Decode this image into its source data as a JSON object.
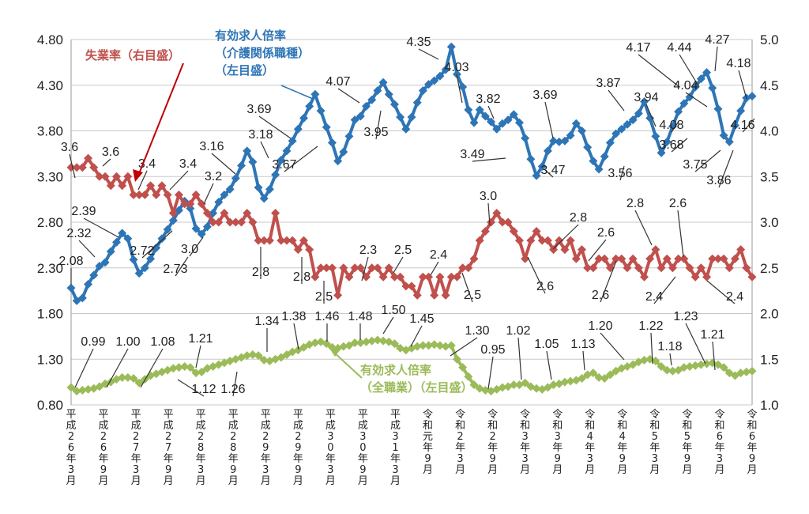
{
  "chart_data": {
    "type": "line",
    "x_labels": [
      "平成26年3月",
      "平成26年9月",
      "平成27年3月",
      "平成27年9月",
      "平成28年3月",
      "平成28年9月",
      "平成29年3月",
      "平成29年9月",
      "平成30年3月",
      "平成30年9月",
      "平成31年3月",
      "令和元年9月",
      "令和2年3月",
      "令和2年9月",
      "令和3年3月",
      "令和3年9月",
      "令和4年3月",
      "令和4年9月",
      "令和5年3月",
      "令和5年9月",
      "令和6年3月",
      "令和6年9月"
    ],
    "left_axis": {
      "ticks": [
        "0.80",
        "1.30",
        "1.80",
        "2.30",
        "2.80",
        "3.30",
        "3.80",
        "4.30",
        "4.80"
      ],
      "range": [
        0.8,
        4.8
      ]
    },
    "right_axis": {
      "ticks": [
        "1.0",
        "1.5",
        "2.0",
        "2.5",
        "3.0",
        "3.5",
        "4.0",
        "4.5",
        "5.0"
      ],
      "range": [
        1.0,
        5.0
      ]
    },
    "series": [
      {
        "name": "有効求人倍率（介護関係職種）（左目盛）",
        "label_lines": [
          "有効求人倍率",
          "（介護関係職種）",
          "（左目盛）"
        ],
        "axis": "left",
        "color": "#2e75b6",
        "values": [
          2.08,
          1.94,
          1.97,
          2.12,
          2.22,
          2.32,
          2.36,
          2.48,
          2.58,
          2.68,
          2.62,
          2.39,
          2.24,
          2.3,
          2.4,
          2.52,
          2.62,
          2.72,
          2.82,
          2.93,
          3.03,
          2.95,
          2.73,
          2.67,
          2.75,
          2.9,
          3.02,
          3.1,
          3.16,
          3.28,
          3.42,
          3.58,
          3.46,
          3.18,
          3.06,
          3.16,
          3.32,
          3.48,
          3.58,
          3.69,
          3.82,
          3.94,
          4.07,
          4.2,
          4.02,
          3.84,
          3.67,
          3.47,
          3.57,
          3.74,
          3.92,
          3.96,
          4.07,
          4.14,
          4.24,
          4.33,
          4.2,
          4.09,
          3.95,
          3.82,
          3.95,
          4.11,
          4.24,
          4.31,
          4.35,
          4.4,
          4.47,
          4.72,
          4.42,
          4.28,
          4.03,
          3.89,
          4.03,
          3.96,
          3.9,
          3.82,
          3.88,
          3.92,
          3.98,
          3.89,
          3.72,
          3.49,
          3.31,
          3.41,
          3.58,
          3.69,
          3.68,
          3.69,
          3.75,
          3.88,
          3.8,
          3.62,
          3.47,
          3.38,
          3.52,
          3.67,
          3.77,
          3.82,
          3.87,
          3.92,
          3.99,
          4.12,
          3.94,
          3.74,
          3.56,
          3.68,
          3.85,
          4.01,
          4.1,
          4.17,
          4.28,
          4.37,
          4.44,
          4.27,
          4.04,
          3.75,
          3.68,
          3.86,
          4.02,
          4.16,
          4.18
        ]
      },
      {
        "name": "失業率（右目盛）",
        "label_lines": [
          "失業率（右目盛）"
        ],
        "axis": "right",
        "color": "#c0504d",
        "values": [
          3.6,
          3.6,
          3.6,
          3.7,
          3.6,
          3.5,
          3.5,
          3.4,
          3.5,
          3.4,
          3.5,
          3.3,
          3.3,
          3.3,
          3.4,
          3.3,
          3.4,
          3.3,
          3.1,
          3.3,
          3.2,
          3.2,
          3.3,
          3.2,
          3.1,
          3.0,
          3.0,
          3.1,
          3.0,
          3.0,
          3.0,
          3.1,
          3.0,
          2.8,
          2.8,
          2.8,
          3.1,
          2.8,
          2.8,
          2.8,
          2.7,
          2.8,
          2.7,
          2.4,
          2.5,
          2.5,
          2.5,
          2.2,
          2.5,
          2.4,
          2.5,
          2.5,
          2.4,
          2.5,
          2.5,
          2.4,
          2.5,
          2.4,
          2.4,
          2.3,
          2.3,
          2.2,
          2.4,
          2.4,
          2.2,
          2.4,
          2.2,
          2.4,
          2.4,
          2.5,
          2.5,
          2.6,
          2.8,
          2.9,
          3.0,
          3.1,
          3.0,
          3.0,
          2.9,
          2.8,
          2.6,
          2.8,
          2.9,
          2.8,
          2.8,
          2.7,
          2.8,
          2.7,
          2.8,
          2.6,
          2.7,
          2.5,
          2.5,
          2.6,
          2.6,
          2.5,
          2.6,
          2.6,
          2.5,
          2.6,
          2.5,
          2.4,
          2.6,
          2.7,
          2.5,
          2.6,
          2.5,
          2.6,
          2.6,
          2.5,
          2.4,
          2.5,
          2.4,
          2.6,
          2.6,
          2.6,
          2.5,
          2.6,
          2.7,
          2.5,
          2.4
        ]
      },
      {
        "name": "有効求人倍率（全職業）（左目盛）",
        "label_lines": [
          "有効求人倍率",
          "（全職業）（左目盛）"
        ],
        "axis": "left",
        "color": "#9bbb59",
        "values": [
          0.99,
          0.95,
          0.96,
          0.97,
          0.98,
          1.0,
          1.03,
          1.05,
          1.08,
          1.1,
          1.1,
          1.09,
          1.04,
          1.08,
          1.12,
          1.14,
          1.16,
          1.18,
          1.2,
          1.21,
          1.22,
          1.21,
          1.15,
          1.16,
          1.2,
          1.22,
          1.24,
          1.26,
          1.28,
          1.3,
          1.32,
          1.34,
          1.35,
          1.34,
          1.29,
          1.28,
          1.3,
          1.32,
          1.35,
          1.38,
          1.4,
          1.43,
          1.46,
          1.48,
          1.49,
          1.47,
          1.43,
          1.42,
          1.44,
          1.45,
          1.48,
          1.48,
          1.49,
          1.5,
          1.51,
          1.5,
          1.49,
          1.47,
          1.42,
          1.4,
          1.42,
          1.44,
          1.45,
          1.45,
          1.46,
          1.45,
          1.44,
          1.45,
          1.3,
          1.21,
          1.11,
          1.02,
          0.98,
          0.96,
          0.95,
          0.97,
          0.99,
          1.0,
          1.02,
          1.02,
          1.04,
          1.0,
          0.98,
          0.97,
          0.99,
          1.02,
          1.03,
          1.05,
          1.06,
          1.07,
          1.09,
          1.13,
          1.15,
          1.1,
          1.09,
          1.13,
          1.17,
          1.2,
          1.22,
          1.24,
          1.27,
          1.29,
          1.3,
          1.28,
          1.22,
          1.18,
          1.17,
          1.18,
          1.21,
          1.22,
          1.23,
          1.24,
          1.25,
          1.26,
          1.24,
          1.21,
          1.15,
          1.12,
          1.15,
          1.16,
          1.17
        ]
      }
    ],
    "data_labels": [
      {
        "series": 0,
        "text": "2.08"
      },
      {
        "series": 0,
        "text": "2.32"
      },
      {
        "series": 0,
        "text": "2.39"
      },
      {
        "series": 0,
        "text": "2.72"
      },
      {
        "series": 0,
        "text": "2.73"
      },
      {
        "series": 0,
        "text": "3.0"
      },
      {
        "series": 0,
        "text": "3.16"
      },
      {
        "series": 0,
        "text": "3.18"
      },
      {
        "series": 0,
        "text": "3.69"
      },
      {
        "series": 0,
        "text": "3.67"
      },
      {
        "series": 0,
        "text": "4.07"
      },
      {
        "series": 0,
        "text": "3.95"
      },
      {
        "series": 0,
        "text": "4.35"
      },
      {
        "series": 0,
        "text": "4.03"
      },
      {
        "series": 0,
        "text": "3.82"
      },
      {
        "series": 0,
        "text": "3.49"
      },
      {
        "series": 0,
        "text": "3.69"
      },
      {
        "series": 0,
        "text": "3.47"
      },
      {
        "series": 0,
        "text": "3.87"
      },
      {
        "series": 0,
        "text": "3.56"
      },
      {
        "series": 0,
        "text": "3.94"
      },
      {
        "series": 0,
        "text": "4.17"
      },
      {
        "series": 0,
        "text": "4.44"
      },
      {
        "series": 0,
        "text": "4.27"
      },
      {
        "series": 0,
        "text": "4.18"
      },
      {
        "series": 0,
        "text": "4.04"
      },
      {
        "series": 0,
        "text": "4.08"
      },
      {
        "series": 0,
        "text": "3.68"
      },
      {
        "series": 0,
        "text": "3.75"
      },
      {
        "series": 0,
        "text": "3.86"
      },
      {
        "series": 0,
        "text": "4.16"
      },
      {
        "series": 1,
        "text": "3.6"
      },
      {
        "series": 1,
        "text": "3.6"
      },
      {
        "series": 1,
        "text": "3.4"
      },
      {
        "series": 1,
        "text": "3.4"
      },
      {
        "series": 1,
        "text": "3.2"
      },
      {
        "series": 1,
        "text": "2.8"
      },
      {
        "series": 1,
        "text": "2.8"
      },
      {
        "series": 1,
        "text": "2.5"
      },
      {
        "series": 1,
        "text": "2.3"
      },
      {
        "series": 1,
        "text": "2.5"
      },
      {
        "series": 1,
        "text": "2.4"
      },
      {
        "series": 1,
        "text": "2.5"
      },
      {
        "series": 1,
        "text": "3.0"
      },
      {
        "series": 1,
        "text": "2.6"
      },
      {
        "series": 1,
        "text": "2.8"
      },
      {
        "series": 1,
        "text": "2.6"
      },
      {
        "series": 1,
        "text": "2.6"
      },
      {
        "series": 1,
        "text": "2.8"
      },
      {
        "series": 1,
        "text": "2.6"
      },
      {
        "series": 1,
        "text": "2.4"
      },
      {
        "series": 1,
        "text": "2.4"
      },
      {
        "series": 2,
        "text": "0.99"
      },
      {
        "series": 2,
        "text": "1.00"
      },
      {
        "series": 2,
        "text": "1.08"
      },
      {
        "series": 2,
        "text": "1.21"
      },
      {
        "series": 2,
        "text": "1.12"
      },
      {
        "series": 2,
        "text": "1.26"
      },
      {
        "series": 2,
        "text": "1.34"
      },
      {
        "series": 2,
        "text": "1.38"
      },
      {
        "series": 2,
        "text": "1.46"
      },
      {
        "series": 2,
        "text": "1.48"
      },
      {
        "series": 2,
        "text": "1.50"
      },
      {
        "series": 2,
        "text": "1.45"
      },
      {
        "series": 2,
        "text": "1.30"
      },
      {
        "series": 2,
        "text": "0.95"
      },
      {
        "series": 2,
        "text": "1.02"
      },
      {
        "series": 2,
        "text": "1.05"
      },
      {
        "series": 2,
        "text": "1.13"
      },
      {
        "series": 2,
        "text": "1.20"
      },
      {
        "series": 2,
        "text": "1.22"
      },
      {
        "series": 2,
        "text": "1.18"
      },
      {
        "series": 2,
        "text": "1.23"
      },
      {
        "series": 2,
        "text": "1.21"
      }
    ]
  }
}
